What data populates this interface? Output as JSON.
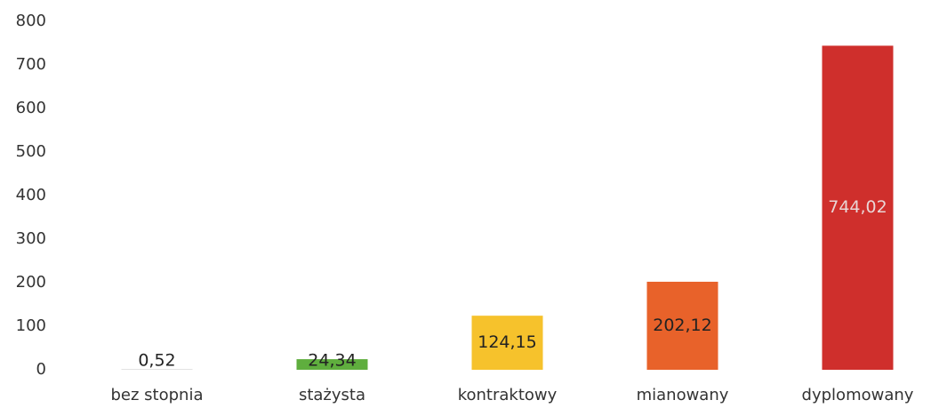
{
  "chart_data": {
    "type": "bar",
    "categories": [
      "bez stopnia",
      "stażysta",
      "kontraktowy",
      "mianowany",
      "dyplomowany"
    ],
    "values": [
      0.52,
      24.34,
      124.15,
      202.12,
      744.02
    ],
    "value_labels": [
      "0,52",
      "24,34",
      "124,15",
      "202,12",
      "744,02"
    ],
    "colors": [
      "#8c8c8c",
      "#5fae3e",
      "#f6c22c",
      "#e8622a",
      "#cf2f2c"
    ],
    "ylim": [
      0,
      800
    ],
    "yticks": [
      0,
      100,
      200,
      300,
      400,
      500,
      600,
      700,
      800
    ],
    "grid": false
  }
}
